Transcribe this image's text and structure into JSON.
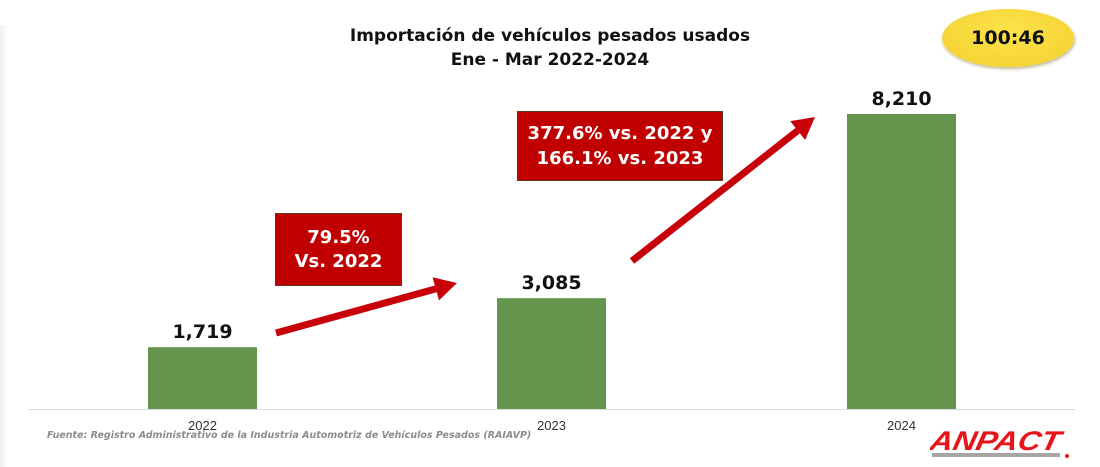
{
  "header": {
    "title_line1": "Importación de vehículos pesados usados",
    "title_line2": "Ene - Mar 2022-2024"
  },
  "badge": {
    "text": "100:46",
    "color": "#f5d63a"
  },
  "callouts": [
    {
      "line1": "79.5%",
      "line2": "Vs. 2022"
    },
    {
      "line1": "377.6% vs. 2022 y",
      "line2": "166.1% vs. 2023"
    }
  ],
  "footer": {
    "source": "Fuente: Registro Administrativo de la Industria Automotriz de Vehículos Pesados (RAIAVP)",
    "logo_text": "ANPACT",
    "logo_color": "#e8141c"
  },
  "colors": {
    "bar": "#64954c",
    "arrow": "#c8000a",
    "callout_bg": "#c00000"
  },
  "chart_data": {
    "type": "bar",
    "title": "Importación de vehículos pesados usados Ene - Mar 2022-2024",
    "xlabel": "",
    "ylabel": "",
    "categories": [
      "2022",
      "2023",
      "2024"
    ],
    "values": [
      1719,
      3085,
      8210
    ],
    "data_labels": [
      "1,719",
      "3,085",
      "8,210"
    ],
    "ylim": [
      0,
      10500
    ],
    "grid": false,
    "legend": "none",
    "annotations": [
      {
        "from": "2022",
        "to": "2023",
        "text": "79.5% Vs. 2022"
      },
      {
        "from": "2023",
        "to": "2024",
        "text": "377.6% vs. 2022 y 166.1% vs. 2023"
      }
    ]
  }
}
